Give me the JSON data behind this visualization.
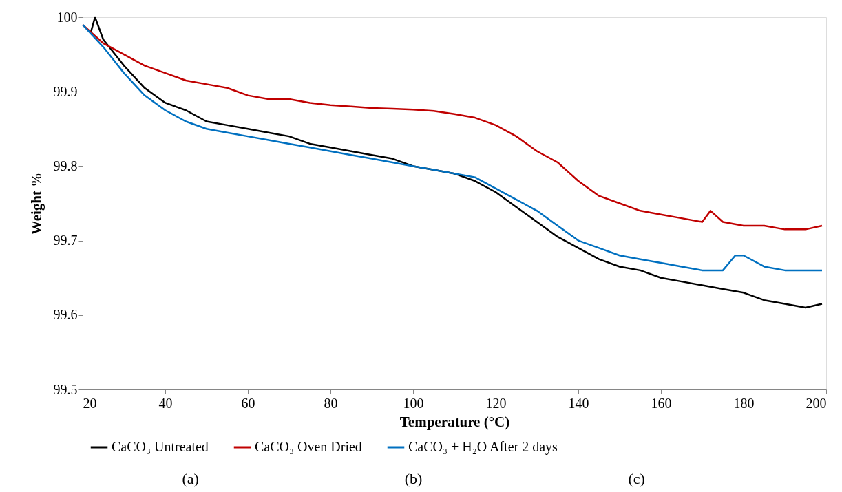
{
  "chart_data": {
    "type": "line",
    "xlabel": "Temperature (°C)",
    "ylabel": "Weight %",
    "xlim": [
      20,
      200
    ],
    "xticks": [
      20,
      40,
      60,
      80,
      100,
      120,
      140,
      160,
      180,
      200
    ],
    "ylim": [
      99.5,
      100
    ],
    "yticks": [
      99.5,
      99.6,
      99.7,
      99.8,
      99.9,
      100
    ],
    "grid": false,
    "legend": "bottom",
    "marker": "none",
    "line_style": "solid",
    "annotations": [
      "(a)",
      "(b)",
      "(c)"
    ],
    "series": [
      {
        "name": "CaCO₃ Untreated",
        "color": "#000000",
        "x": [
          22,
          23,
          25,
          30,
          35,
          40,
          45,
          50,
          55,
          60,
          65,
          70,
          75,
          80,
          85,
          90,
          95,
          100,
          105,
          110,
          115,
          120,
          125,
          130,
          135,
          140,
          145,
          150,
          155,
          160,
          165,
          170,
          175,
          180,
          185,
          190,
          195,
          199
        ],
        "values": [
          99.98,
          100.0,
          99.97,
          99.935,
          99.905,
          99.885,
          99.875,
          99.86,
          99.855,
          99.85,
          99.845,
          99.84,
          99.83,
          99.825,
          99.82,
          99.815,
          99.81,
          99.8,
          99.795,
          99.79,
          99.78,
          99.765,
          99.745,
          99.725,
          99.705,
          99.69,
          99.675,
          99.665,
          99.66,
          99.65,
          99.645,
          99.64,
          99.635,
          99.63,
          99.62,
          99.615,
          99.61,
          99.615
        ]
      },
      {
        "name": "CaCO₃ Oven Dried",
        "color": "#c00000",
        "x": [
          20,
          25,
          30,
          35,
          40,
          45,
          50,
          55,
          60,
          65,
          70,
          75,
          80,
          85,
          90,
          95,
          100,
          105,
          110,
          115,
          120,
          125,
          130,
          135,
          140,
          145,
          150,
          155,
          160,
          165,
          170,
          172,
          175,
          180,
          185,
          190,
          195,
          199
        ],
        "values": [
          99.99,
          99.965,
          99.95,
          99.935,
          99.925,
          99.915,
          99.91,
          99.905,
          99.895,
          99.89,
          99.89,
          99.885,
          99.882,
          99.88,
          99.878,
          99.877,
          99.876,
          99.874,
          99.87,
          99.865,
          99.855,
          99.84,
          99.82,
          99.805,
          99.78,
          99.76,
          99.75,
          99.74,
          99.735,
          99.73,
          99.725,
          99.74,
          99.725,
          99.72,
          99.72,
          99.715,
          99.715,
          99.72
        ]
      },
      {
        "name": "CaCO₃ + H₂O After 2 days",
        "color": "#0070c0",
        "x": [
          20,
          25,
          30,
          35,
          40,
          45,
          50,
          55,
          60,
          65,
          70,
          75,
          80,
          85,
          90,
          95,
          100,
          105,
          110,
          115,
          120,
          125,
          130,
          135,
          140,
          145,
          150,
          155,
          160,
          165,
          170,
          175,
          178,
          180,
          185,
          190,
          195,
          199
        ],
        "values": [
          99.99,
          99.96,
          99.925,
          99.895,
          99.875,
          99.86,
          99.85,
          99.845,
          99.84,
          99.835,
          99.83,
          99.825,
          99.82,
          99.815,
          99.81,
          99.805,
          99.8,
          99.795,
          99.79,
          99.785,
          99.77,
          99.755,
          99.74,
          99.72,
          99.7,
          99.69,
          99.68,
          99.675,
          99.67,
          99.665,
          99.66,
          99.66,
          99.68,
          99.68,
          99.665,
          99.66,
          99.66,
          99.66
        ]
      }
    ]
  }
}
